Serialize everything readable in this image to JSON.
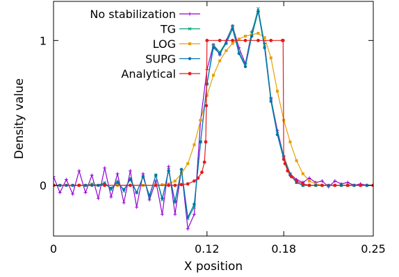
{
  "chart_data": {
    "type": "line",
    "title": "",
    "xlabel": "X position",
    "ylabel": "Density value",
    "xlim": [
      0,
      0.25
    ],
    "ylim": [
      -0.35,
      1.27
    ],
    "x_ticks": [
      {
        "value": 0,
        "label": "0"
      },
      {
        "value": 0.12,
        "label": "0.12"
      },
      {
        "value": 0.18,
        "label": "0.18"
      },
      {
        "value": 0.25,
        "label": "0.25"
      }
    ],
    "y_ticks": [
      {
        "value": 0,
        "label": "0"
      },
      {
        "value": 1,
        "label": "1"
      }
    ],
    "grid": false,
    "legend_position": "top-left",
    "series": [
      {
        "name": "No stabilization",
        "color": "#9400d3",
        "marker": "plus",
        "x": [
          0,
          0.005,
          0.01,
          0.015,
          0.02,
          0.025,
          0.03,
          0.035,
          0.04,
          0.045,
          0.05,
          0.055,
          0.06,
          0.065,
          0.07,
          0.075,
          0.08,
          0.085,
          0.09,
          0.095,
          0.1,
          0.105,
          0.11,
          0.115,
          0.12,
          0.125,
          0.13,
          0.135,
          0.14,
          0.145,
          0.15,
          0.155,
          0.16,
          0.165,
          0.17,
          0.175,
          0.18,
          0.185,
          0.19,
          0.195,
          0.2,
          0.205,
          0.21,
          0.215,
          0.22,
          0.225,
          0.23,
          0.235,
          0.24,
          0.245,
          0.25
        ],
        "y": [
          0.06,
          -0.05,
          0.04,
          -0.06,
          0.1,
          -0.05,
          0.07,
          -0.09,
          0.12,
          -0.08,
          0.08,
          -0.12,
          0.1,
          -0.15,
          0.08,
          -0.1,
          0.03,
          -0.2,
          0.13,
          -0.2,
          0.11,
          -0.3,
          -0.2,
          0.45,
          0.8,
          0.97,
          0.9,
          1.0,
          1.1,
          0.95,
          0.84,
          1.06,
          1.2,
          0.98,
          0.6,
          0.38,
          0.2,
          0.08,
          0.04,
          0.02,
          0.05,
          0.02,
          0.03,
          -0.01,
          0.03,
          0.01,
          0.02,
          0.0,
          0.01,
          0.0,
          0.0
        ]
      },
      {
        "name": "TG",
        "color": "#009e73",
        "marker": "cross",
        "x": [
          0,
          0.005,
          0.01,
          0.015,
          0.02,
          0.025,
          0.03,
          0.035,
          0.04,
          0.045,
          0.05,
          0.055,
          0.06,
          0.065,
          0.07,
          0.075,
          0.08,
          0.085,
          0.09,
          0.095,
          0.1,
          0.105,
          0.11,
          0.115,
          0.12,
          0.125,
          0.13,
          0.135,
          0.14,
          0.145,
          0.15,
          0.155,
          0.16,
          0.165,
          0.17,
          0.175,
          0.18,
          0.185,
          0.19,
          0.195,
          0.2,
          0.205,
          0.21,
          0.215,
          0.22,
          0.225,
          0.23,
          0.235,
          0.24,
          0.245,
          0.25
        ],
        "y": [
          0,
          0,
          0,
          0,
          0,
          0,
          0.01,
          0,
          0.02,
          -0.03,
          0.03,
          -0.04,
          0.05,
          -0.05,
          0.06,
          -0.08,
          0.07,
          -0.1,
          0.11,
          -0.12,
          0.1,
          -0.23,
          -0.15,
          0.3,
          0.7,
          0.97,
          0.92,
          0.99,
          1.1,
          0.92,
          0.83,
          1.05,
          1.22,
          0.97,
          0.6,
          0.36,
          0.2,
          0.08,
          0.02,
          0.0,
          0.0,
          0.0,
          0.0,
          0.0,
          0.0,
          0.0,
          0.0,
          0.0,
          0.0,
          0.0,
          0.0
        ]
      },
      {
        "name": "LOG",
        "color": "#e69f00",
        "marker": "square",
        "x": [
          0,
          0.01,
          0.02,
          0.03,
          0.04,
          0.05,
          0.06,
          0.07,
          0.08,
          0.085,
          0.09,
          0.095,
          0.1,
          0.105,
          0.11,
          0.115,
          0.12,
          0.125,
          0.13,
          0.135,
          0.14,
          0.145,
          0.15,
          0.155,
          0.16,
          0.165,
          0.17,
          0.175,
          0.18,
          0.185,
          0.19,
          0.195,
          0.2,
          0.205,
          0.21,
          0.22,
          0.23,
          0.24,
          0.25
        ],
        "y": [
          0,
          0,
          0,
          0,
          0,
          0,
          0,
          0,
          0.0,
          0.005,
          0.01,
          0.03,
          0.08,
          0.15,
          0.28,
          0.45,
          0.62,
          0.76,
          0.86,
          0.93,
          0.98,
          1.01,
          1.03,
          1.04,
          1.05,
          1.02,
          0.88,
          0.65,
          0.45,
          0.3,
          0.17,
          0.08,
          0.03,
          0.01,
          0.0,
          0.0,
          0.0,
          0.0,
          0.0
        ]
      },
      {
        "name": "SUPG",
        "color": "#0072b2",
        "marker": "circle",
        "x": [
          0,
          0.005,
          0.01,
          0.015,
          0.02,
          0.025,
          0.03,
          0.035,
          0.04,
          0.045,
          0.05,
          0.055,
          0.06,
          0.065,
          0.07,
          0.075,
          0.08,
          0.085,
          0.09,
          0.095,
          0.1,
          0.105,
          0.11,
          0.115,
          0.12,
          0.125,
          0.13,
          0.135,
          0.14,
          0.145,
          0.15,
          0.155,
          0.16,
          0.165,
          0.17,
          0.175,
          0.18,
          0.185,
          0.19,
          0.195,
          0.2,
          0.205,
          0.21,
          0.215,
          0.22,
          0.225,
          0.23,
          0.235,
          0.24,
          0.245,
          0.25
        ],
        "y": [
          0,
          0,
          0,
          0,
          0,
          0,
          0,
          0,
          0.01,
          -0.02,
          0.02,
          -0.03,
          0.04,
          -0.05,
          0.06,
          -0.07,
          0.07,
          -0.09,
          0.1,
          -0.11,
          0.11,
          -0.22,
          -0.13,
          0.3,
          0.7,
          0.95,
          0.91,
          0.98,
          1.08,
          0.91,
          0.82,
          1.03,
          1.2,
          0.95,
          0.58,
          0.35,
          0.18,
          0.07,
          0.02,
          0.0,
          0.0,
          0.0,
          0.0,
          0.0,
          0.0,
          0.0,
          0.0,
          0.0,
          0.0,
          0.0,
          0.0
        ]
      },
      {
        "name": "Analytical",
        "color": "#e41a1c",
        "marker": "dot",
        "x": [
          0,
          0.02,
          0.04,
          0.06,
          0.08,
          0.09,
          0.095,
          0.1,
          0.105,
          0.11,
          0.113,
          0.116,
          0.118,
          0.119,
          0.1195,
          0.12,
          0.13,
          0.14,
          0.15,
          0.16,
          0.17,
          0.179,
          0.1795,
          0.18,
          0.181,
          0.183,
          0.186,
          0.19,
          0.195,
          0.2,
          0.21,
          0.22,
          0.23,
          0.24,
          0.25
        ],
        "y": [
          0,
          0,
          0,
          0,
          0,
          0.0,
          0.0,
          0.005,
          0.01,
          0.03,
          0.05,
          0.09,
          0.16,
          0.3,
          0.55,
          1.0,
          1.0,
          1.0,
          1.0,
          1.0,
          1.0,
          1.0,
          1.0,
          0.18,
          0.15,
          0.1,
          0.06,
          0.03,
          0.01,
          0.0,
          0.0,
          0.0,
          0.0,
          0.0,
          0.0
        ]
      }
    ]
  }
}
